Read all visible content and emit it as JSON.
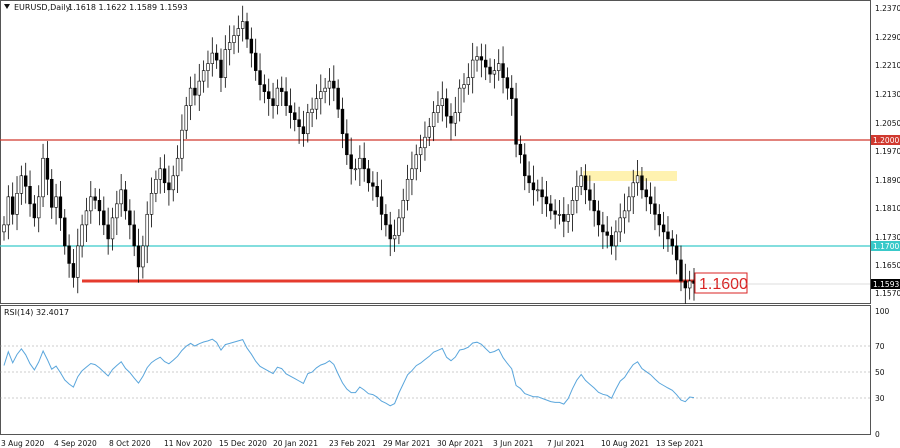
{
  "header": {
    "symbol_title": "EURUSD,Daily",
    "ohlc": "1.1618 1.1622 1.1589 1.1593"
  },
  "price_axis": {
    "ticks": [
      "1.2370",
      "1.2290",
      "1.2210",
      "1.2130",
      "1.2050",
      "1.1970",
      "1.1890",
      "1.1810",
      "1.1730",
      "1.1650",
      "1.1570"
    ],
    "current_price_badge": "1.1593",
    "level_1": "1.2000",
    "level_2": "1.1700"
  },
  "annotation": {
    "support_label": "1.1600"
  },
  "rsi_panel": {
    "title": "RSI(14) 32.4017",
    "ticks": [
      "100",
      "70",
      "50",
      "30",
      "0"
    ]
  },
  "date_axis": {
    "ticks": [
      "3 Aug 2020",
      "4 Sep 2020",
      "8 Oct 2020",
      "11 Nov 2020",
      "15 Dec 2020",
      "20 Jan 2021",
      "23 Feb 2021",
      "29 Mar 2021",
      "30 Apr 2021",
      "3 Jun 2021",
      "7 Jul 2021",
      "10 Aug 2021",
      "13 Sep 2021"
    ]
  },
  "colors": {
    "level_red": "#d0392f",
    "level_cyan": "#39c9c9",
    "support_red": "#e53b2e",
    "highlight_zone": "#fff2b0",
    "rsi_line": "#5aa6dc",
    "candle": "#000000"
  },
  "chart_data": {
    "type": "candlestick",
    "symbol": "EURUSD",
    "timeframe": "Daily",
    "last_close": 1.1593,
    "ylim": [
      1.154,
      1.239
    ],
    "horizontal_levels": [
      1.2,
      1.17,
      1.16
    ],
    "highlight_zone_price": [
      1.1895,
      1.192
    ],
    "close_series": [
      1.176,
      1.184,
      1.179,
      1.185,
      1.19,
      1.187,
      1.182,
      1.178,
      1.184,
      1.195,
      1.189,
      1.181,
      1.184,
      1.178,
      1.17,
      1.165,
      1.161,
      1.17,
      1.176,
      1.18,
      1.184,
      1.183,
      1.18,
      1.176,
      1.172,
      1.178,
      1.182,
      1.186,
      1.18,
      1.176,
      1.17,
      1.164,
      1.17,
      1.179,
      1.185,
      1.189,
      1.192,
      1.188,
      1.186,
      1.19,
      1.195,
      1.203,
      1.21,
      1.215,
      1.213,
      1.217,
      1.22,
      1.222,
      1.225,
      1.223,
      1.218,
      1.226,
      1.228,
      1.23,
      1.232,
      1.234,
      1.229,
      1.225,
      1.22,
      1.216,
      1.214,
      1.212,
      1.21,
      1.215,
      1.214,
      1.21,
      1.208,
      1.206,
      1.204,
      1.202,
      1.208,
      1.209,
      1.212,
      1.214,
      1.215,
      1.217,
      1.215,
      1.209,
      1.202,
      1.196,
      1.192,
      1.192,
      1.195,
      1.192,
      1.188,
      1.187,
      1.184,
      1.179,
      1.176,
      1.172,
      1.173,
      1.178,
      1.183,
      1.189,
      1.192,
      1.196,
      1.198,
      1.201,
      1.204,
      1.208,
      1.21,
      1.212,
      1.207,
      1.205,
      1.208,
      1.215,
      1.216,
      1.218,
      1.223,
      1.224,
      1.223,
      1.221,
      1.219,
      1.22,
      1.222,
      1.218,
      1.215,
      1.212,
      1.199,
      1.196,
      1.19,
      1.188,
      1.186,
      1.186,
      1.184,
      1.182,
      1.18,
      1.179,
      1.179,
      1.177,
      1.179,
      1.183,
      1.187,
      1.19,
      1.186,
      1.183,
      1.18,
      1.176,
      1.174,
      1.173,
      1.17,
      1.174,
      1.178,
      1.18,
      1.184,
      1.188,
      1.19,
      1.186,
      1.184,
      1.182,
      1.179,
      1.176,
      1.174,
      1.172,
      1.17,
      1.166,
      1.16,
      1.158,
      1.16,
      1.1593
    ]
  }
}
